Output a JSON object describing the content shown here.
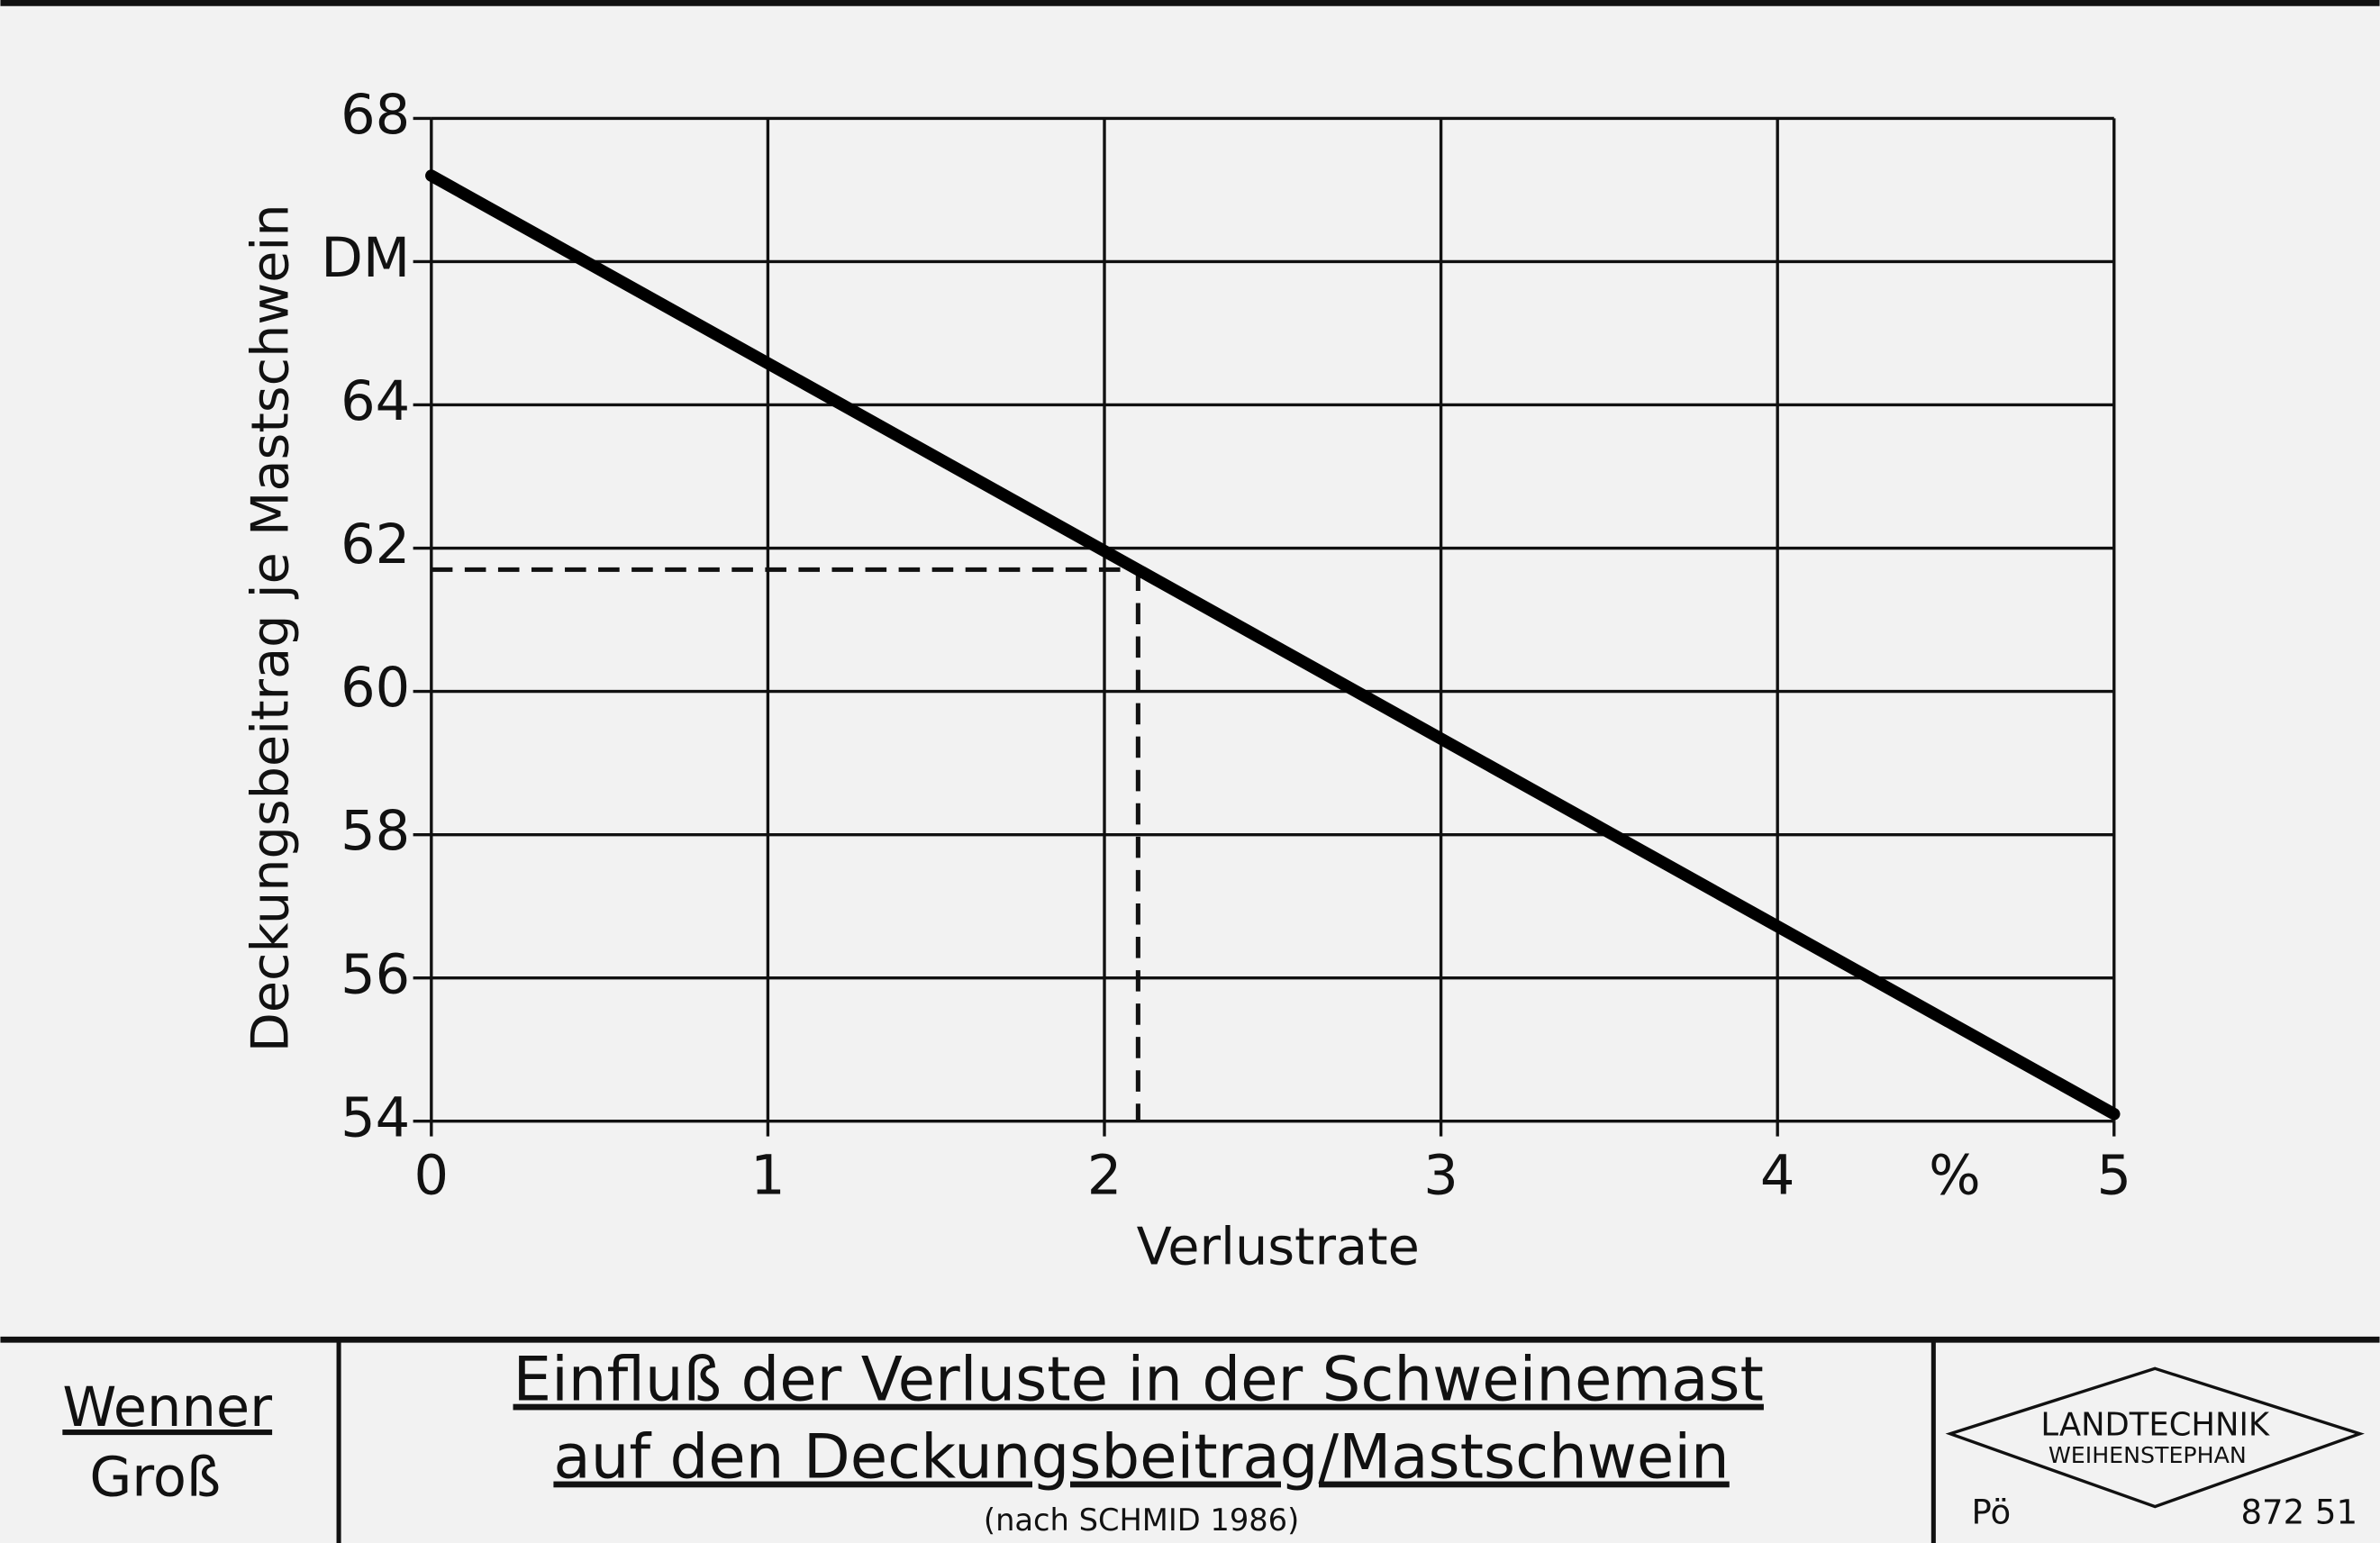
{
  "chart_data": {
    "type": "line",
    "y_label": "Deckungsbeitrag je Mastschwein",
    "x_label": "Verlustrate",
    "x_unit": "%",
    "x": [
      0,
      5
    ],
    "values": [
      67.2,
      54.1
    ],
    "color": "#000000",
    "xlim": [
      0,
      5
    ],
    "xticks": [
      0,
      1,
      2,
      3,
      4,
      5
    ],
    "ylim": [
      54,
      68
    ],
    "yticks": [
      54,
      56,
      58,
      60,
      62,
      64,
      {
        "value": 66,
        "label": "DM"
      },
      68
    ],
    "grid": true,
    "reference": {
      "x": 2.1,
      "y": 61.7
    }
  },
  "footer": {
    "authors": [
      "Wenner",
      "Groß"
    ],
    "title_lines": [
      "Einfluß der Verluste in der Schweinemast",
      "auf den Deckungsbeitrag/Mastschwein"
    ],
    "source": "(nach SCHMID 1986)",
    "logo_lines": [
      "LANDTECHNIK",
      "WEIHENSTEPHAN"
    ],
    "code_left": "Pö",
    "code_right": "872 51"
  }
}
